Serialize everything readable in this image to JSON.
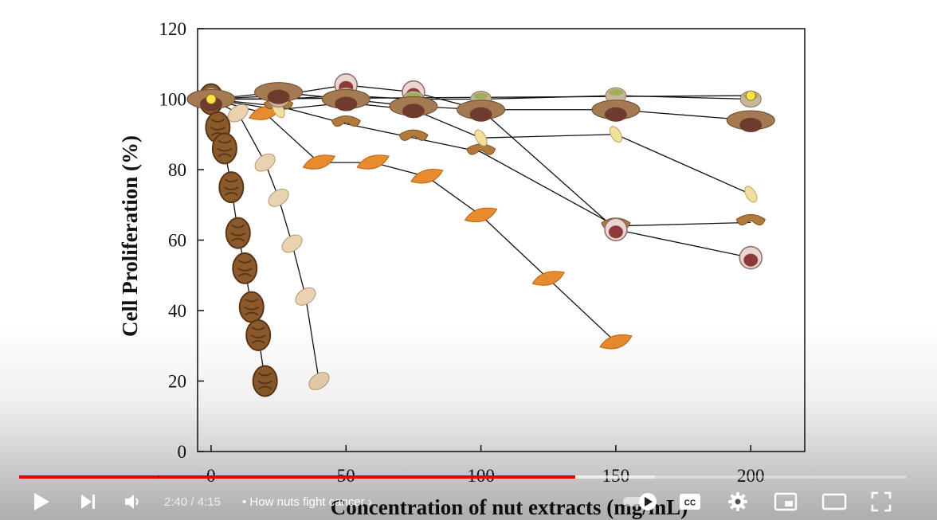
{
  "player": {
    "time_current": "2:40",
    "time_separator": " / ",
    "time_total": "4:15",
    "chapter_title": "How nuts fight cancer",
    "progress_played": 0.627,
    "progress_buffered": 0.716,
    "icons": {
      "play": "play-icon",
      "next": "next-icon",
      "volume": "volume-icon",
      "autoplay": "autoplay-toggle-icon",
      "captions": "cc-icon",
      "settings": "gear-icon",
      "miniplayer": "miniplayer-icon",
      "theater": "theater-icon",
      "fullscreen": "fullscreen-icon",
      "channel_watermark": "tree-icon"
    },
    "colors": {
      "progress": "#ee0000",
      "buffer": "#cfcfcf"
    }
  },
  "chart_data": {
    "type": "line",
    "xlabel": "Concentration of nut extracts (mg/mL)",
    "ylabel": "Cell Proliferation (%)",
    "xlim": [
      -5,
      220
    ],
    "ylim": [
      0,
      120
    ],
    "xticks": [
      "0",
      "50",
      "100",
      "150",
      "200"
    ],
    "yticks": [
      "0",
      "20",
      "40",
      "60",
      "80",
      "100",
      "120"
    ],
    "grid": false,
    "series": [
      {
        "marker": "walnut",
        "color": "#8a5a2b",
        "x": [
          0,
          2.5,
          5,
          7.5,
          10,
          12.5,
          15,
          17.5,
          20
        ],
        "y": [
          100,
          92,
          86,
          75,
          62,
          52,
          41,
          33,
          20
        ]
      },
      {
        "marker": "peanut",
        "color": "#e8d2b0",
        "x": [
          0,
          10,
          20,
          25,
          30,
          35,
          40
        ],
        "y": [
          100,
          96,
          82,
          72,
          59,
          44,
          20
        ]
      },
      {
        "marker": "almond",
        "color": "#e88a2e",
        "x": [
          0,
          20,
          40,
          60,
          80,
          100,
          125,
          150
        ],
        "y": [
          100,
          96,
          82,
          82,
          78,
          67,
          49,
          31
        ]
      },
      {
        "marker": "cashew",
        "color": "#b07a3c",
        "x": [
          0,
          25,
          50,
          75,
          100,
          150,
          200
        ],
        "y": [
          100,
          98,
          93,
          89,
          85,
          64,
          65
        ]
      },
      {
        "marker": "hazelnut",
        "color": "#8c3a3a",
        "x": [
          0,
          25,
          50,
          75,
          100,
          150,
          200
        ],
        "y": [
          100,
          101,
          104,
          102,
          97,
          63,
          55
        ]
      },
      {
        "marker": "pine-nut",
        "color": "#f0e0a0",
        "x": [
          0,
          25,
          50,
          75,
          100,
          150,
          200
        ],
        "y": [
          100,
          97,
          99,
          97,
          89,
          90,
          73
        ]
      },
      {
        "marker": "pistachio",
        "color": "#c8b59a",
        "x": [
          0,
          25,
          50,
          75,
          100,
          150,
          200
        ],
        "y": [
          100,
          100,
          101,
          100,
          100,
          101,
          100
        ]
      },
      {
        "marker": "brazil-nut",
        "color": "#6e3b2e",
        "x": [
          0,
          25,
          50,
          75,
          100,
          150,
          200
        ],
        "y": [
          100,
          102,
          100,
          98,
          97,
          97,
          94
        ]
      },
      {
        "marker": "macadamia",
        "color": "#ffe14a",
        "x": [
          0,
          200
        ],
        "y": [
          100,
          101
        ]
      }
    ]
  }
}
